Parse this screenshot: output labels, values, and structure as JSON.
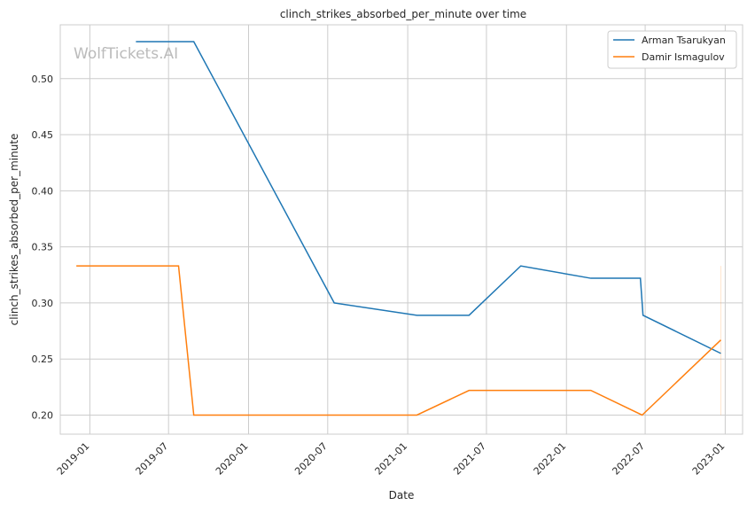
{
  "chart_data": {
    "type": "line",
    "title": "clinch_strikes_absorbed_per_minute over time",
    "xlabel": "Date",
    "ylabel": "clinch_strikes_absorbed_per_minute",
    "watermark": "WolfTickets.AI",
    "x_ticks": [
      "2019-01",
      "2019-07",
      "2020-01",
      "2020-07",
      "2021-01",
      "2021-07",
      "2022-01",
      "2022-07",
      "2023-01"
    ],
    "y_ticks": [
      "0.20",
      "0.25",
      "0.30",
      "0.35",
      "0.40",
      "0.45",
      "0.50"
    ],
    "ylim": [
      0.183,
      0.548
    ],
    "xlim": [
      "2018-10-25",
      "2023-02-10"
    ],
    "grid": true,
    "legend_position": "top-right",
    "series": [
      {
        "name": "Arman Tsarukyan",
        "color": "#1f77b4",
        "x": [
          "2019-04-17",
          "2019-08-28",
          "2020-07-16",
          "2021-01-22",
          "2021-05-22",
          "2021-09-18",
          "2022-02-26",
          "2022-06-20",
          "2022-06-26",
          "2022-12-22"
        ],
        "y": [
          0.533,
          0.533,
          0.3,
          0.289,
          0.289,
          0.333,
          0.322,
          0.322,
          0.289,
          0.255
        ]
      },
      {
        "name": "Damir Ismagulov",
        "color": "#ff7f0e",
        "x": [
          "2018-12-01",
          "2019-07-24",
          "2019-08-28",
          "2021-01-22",
          "2021-05-22",
          "2022-02-26",
          "2022-06-24",
          "2022-12-22"
        ],
        "y": [
          0.333,
          0.333,
          0.2,
          0.2,
          0.222,
          0.222,
          0.2,
          0.267
        ]
      }
    ]
  }
}
